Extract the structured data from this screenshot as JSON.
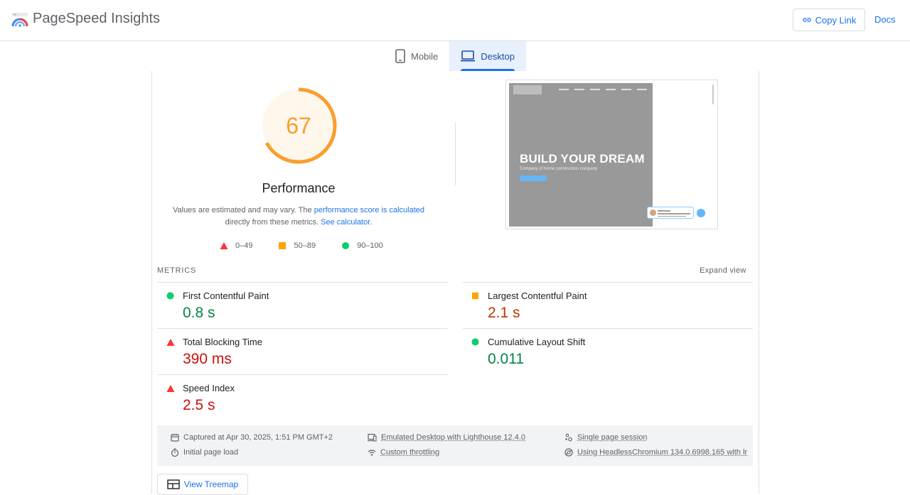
{
  "app": {
    "title": "PageSpeed Insights"
  },
  "header": {
    "copy_link": "Copy Link",
    "docs": "Docs"
  },
  "tabs": [
    {
      "label": "Mobile",
      "active": false
    },
    {
      "label": "Desktop",
      "active": true
    }
  ],
  "performance": {
    "score": "67",
    "title": "Performance",
    "note_prefix": "Values are estimated and may vary. The ",
    "note_link1": "performance score is calculated",
    "note_middle": " directly from these metrics. ",
    "note_link2": "See calculator.",
    "gauge_fraction": 0.67,
    "color": "#fa9e2c"
  },
  "legend": [
    {
      "range": "0–49",
      "shape": "triangle",
      "color": "#ff3333"
    },
    {
      "range": "50–89",
      "shape": "square",
      "color": "#ffa400"
    },
    {
      "range": "90–100",
      "shape": "circle",
      "color": "#0cce6b"
    }
  ],
  "screenshot": {
    "headline": "BUILD YOUR DREAM",
    "subline": "Company of home construction company"
  },
  "metrics": {
    "label": "METRICS",
    "expand": "Expand view",
    "items": [
      {
        "name": "First Contentful Paint",
        "value": "0.8 s",
        "rating": "good"
      },
      {
        "name": "Largest Contentful Paint",
        "value": "2.1 s",
        "rating": "average"
      },
      {
        "name": "Total Blocking Time",
        "value": "390 ms",
        "rating": "poor"
      },
      {
        "name": "Cumulative Layout Shift",
        "value": "0.011",
        "rating": "good"
      },
      {
        "name": "Speed Index",
        "value": "2.5 s",
        "rating": "poor"
      }
    ]
  },
  "runinfo": {
    "captured": "Captured at Apr 30, 2025, 1:51 PM GMT+2",
    "emulated": "Emulated Desktop with Lighthouse 12.4.0",
    "session": "Single page session",
    "load": "Initial page load",
    "throttling": "Custom throttling",
    "browser": "Using HeadlessChromium 134.0.6998.165 with lr"
  },
  "treemap": {
    "label": "View Treemap"
  }
}
